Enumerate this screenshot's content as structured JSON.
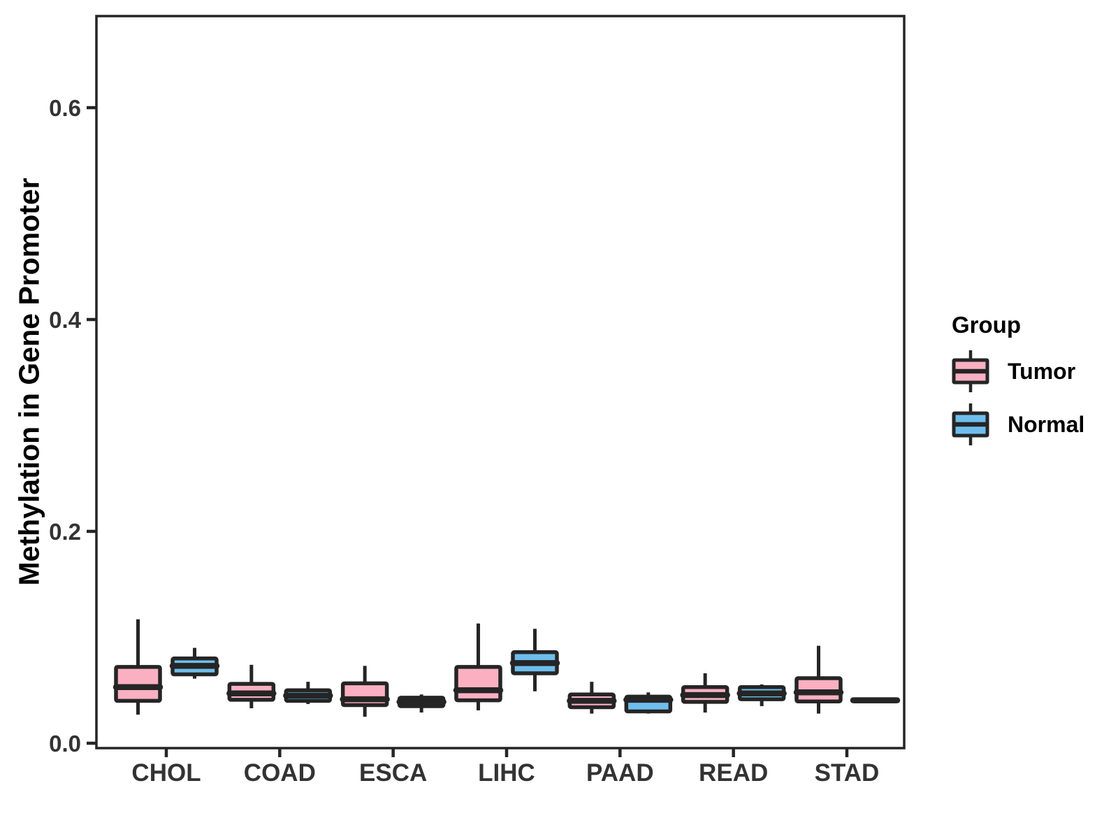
{
  "figure": {
    "background": "#FFFFFF"
  },
  "chart_data": {
    "type": "boxplot",
    "title": "",
    "xlabel": "",
    "ylabel": "Methylation in Gene Promoter",
    "categories": [
      "CHOL",
      "COAD",
      "ESCA",
      "LIHC",
      "PAAD",
      "READ",
      "STAD"
    ],
    "y_axis": {
      "ticks": [
        0,
        0.2,
        0.4,
        0.6
      ],
      "tick_labels": [
        "0.0",
        "0.2",
        "0.4",
        "0.6"
      ],
      "range": [
        -0.005,
        0.687
      ],
      "grid": false
    },
    "legend": {
      "title": "Group",
      "position": "right",
      "entries": [
        {
          "label": "Tumor",
          "color": "#FBB0C1"
        },
        {
          "label": "Normal",
          "color": "#6EBEED"
        }
      ]
    },
    "colors": {
      "tumor_fill": "#FBB0C1",
      "normal_fill": "#6EBEED",
      "box_outline": "#252525",
      "axis_text": "#333333",
      "title_text": "#000000",
      "panel_border": "#252525"
    },
    "series": [
      {
        "name": "Tumor",
        "color": "#FBB0C1",
        "boxes": [
          {
            "category": "CHOL",
            "min": 0.027,
            "q1": 0.04,
            "median": 0.053,
            "q3": 0.072,
            "max": 0.117
          },
          {
            "category": "COAD",
            "min": 0.033,
            "q1": 0.041,
            "median": 0.047,
            "q3": 0.056,
            "max": 0.074
          },
          {
            "category": "ESCA",
            "min": 0.025,
            "q1": 0.036,
            "median": 0.0415,
            "q3": 0.0565,
            "max": 0.073
          },
          {
            "category": "LIHC",
            "min": 0.031,
            "q1": 0.0405,
            "median": 0.05,
            "q3": 0.072,
            "max": 0.113
          },
          {
            "category": "PAAD",
            "min": 0.028,
            "q1": 0.034,
            "median": 0.04,
            "q3": 0.046,
            "max": 0.058
          },
          {
            "category": "READ",
            "min": 0.029,
            "q1": 0.039,
            "median": 0.0455,
            "q3": 0.053,
            "max": 0.066
          },
          {
            "category": "STAD",
            "min": 0.028,
            "q1": 0.0394,
            "median": 0.048,
            "q3": 0.0614,
            "max": 0.092
          }
        ]
      },
      {
        "name": "Normal",
        "color": "#6EBEED",
        "boxes": [
          {
            "category": "CHOL",
            "min": 0.061,
            "q1": 0.065,
            "median": 0.073,
            "q3": 0.08,
            "max": 0.09
          },
          {
            "category": "COAD",
            "min": 0.037,
            "q1": 0.04,
            "median": 0.045,
            "q3": 0.05,
            "max": 0.058
          },
          {
            "category": "ESCA",
            "min": 0.029,
            "q1": 0.035,
            "median": 0.039,
            "q3": 0.043,
            "max": 0.046
          },
          {
            "category": "LIHC",
            "min": 0.049,
            "q1": 0.066,
            "median": 0.0757,
            "q3": 0.086,
            "max": 0.108
          },
          {
            "category": "PAAD",
            "min": 0.028,
            "q1": 0.03,
            "median": 0.041,
            "q3": 0.044,
            "max": 0.048
          },
          {
            "category": "READ",
            "min": 0.035,
            "q1": 0.0415,
            "median": 0.047,
            "q3": 0.053,
            "max": 0.0555
          },
          {
            "category": "STAD",
            "min": 0.0385,
            "q1": 0.0395,
            "median": 0.0405,
            "q3": 0.0415,
            "max": 0.0425
          }
        ]
      }
    ]
  }
}
